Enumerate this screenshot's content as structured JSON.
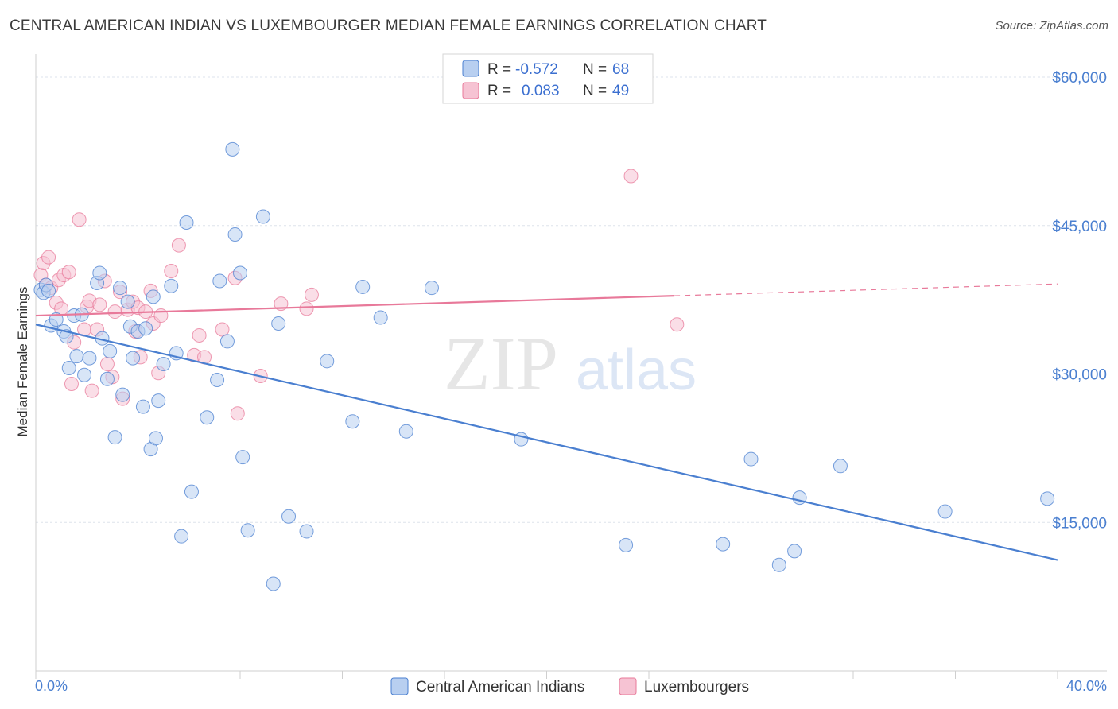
{
  "title": "CENTRAL AMERICAN INDIAN VS LUXEMBOURGER MEDIAN FEMALE EARNINGS CORRELATION CHART",
  "source": "Source: ZipAtlas.com",
  "watermark": {
    "zip": "ZIP",
    "atlas": "atlas"
  },
  "colors": {
    "blue": "#4a7fd0",
    "blue_fill": "#b8cff0",
    "pink": "#e8799a",
    "pink_fill": "#f6c3d3",
    "grid": "#dde3ec"
  },
  "chart_data": {
    "type": "scatter",
    "xlabel": "",
    "ylabel": "Median Female Earnings",
    "xlim": [
      0,
      40
    ],
    "ylim": [
      0,
      62000
    ],
    "x_tick_labels": {
      "left": "0.0%",
      "right": "40.0%"
    },
    "y_ticks": [
      15000,
      30000,
      45000,
      60000
    ],
    "y_tick_labels": [
      "$15,000",
      "$30,000",
      "$45,000",
      "$60,000"
    ],
    "legend": [
      {
        "r_label": "R =",
        "r_value": "-0.572",
        "n_label": "N =",
        "n_value": "68"
      },
      {
        "r_label": "R =",
        "r_value": "0.083",
        "n_label": "N =",
        "n_value": "49"
      }
    ],
    "series": [
      {
        "name": "Central American Indians",
        "color": "#4a7fd0",
        "trend": {
          "x0": 0,
          "y0": 35000,
          "x1": 40,
          "y1": 11200
        },
        "points": [
          [
            0.2,
            38500
          ],
          [
            0.3,
            38200
          ],
          [
            0.4,
            39000
          ],
          [
            0.5,
            38400
          ],
          [
            0.6,
            34900
          ],
          [
            0.8,
            35500
          ],
          [
            1.1,
            34300
          ],
          [
            1.2,
            33800
          ],
          [
            1.3,
            30600
          ],
          [
            1.5,
            35900
          ],
          [
            1.6,
            31800
          ],
          [
            1.8,
            36000
          ],
          [
            1.9,
            29900
          ],
          [
            2.1,
            31600
          ],
          [
            2.4,
            39200
          ],
          [
            2.5,
            40200
          ],
          [
            2.6,
            33600
          ],
          [
            2.8,
            29500
          ],
          [
            2.9,
            32300
          ],
          [
            3.1,
            23600
          ],
          [
            3.3,
            38700
          ],
          [
            3.4,
            27900
          ],
          [
            3.6,
            37300
          ],
          [
            3.7,
            34800
          ],
          [
            3.8,
            31600
          ],
          [
            4.0,
            34300
          ],
          [
            4.2,
            26700
          ],
          [
            4.3,
            34600
          ],
          [
            4.5,
            22400
          ],
          [
            4.6,
            37800
          ],
          [
            4.7,
            23500
          ],
          [
            4.8,
            27300
          ],
          [
            5.0,
            31000
          ],
          [
            5.3,
            38900
          ],
          [
            5.5,
            32100
          ],
          [
            5.7,
            13600
          ],
          [
            5.9,
            45300
          ],
          [
            6.1,
            18100
          ],
          [
            6.7,
            25600
          ],
          [
            7.1,
            29400
          ],
          [
            7.2,
            39400
          ],
          [
            7.5,
            33300
          ],
          [
            7.7,
            52700
          ],
          [
            7.8,
            44100
          ],
          [
            8.0,
            40200
          ],
          [
            8.1,
            21600
          ],
          [
            8.3,
            14200
          ],
          [
            8.9,
            45900
          ],
          [
            9.3,
            8800
          ],
          [
            9.5,
            35100
          ],
          [
            9.9,
            15600
          ],
          [
            10.6,
            14100
          ],
          [
            11.4,
            31300
          ],
          [
            12.4,
            25200
          ],
          [
            12.8,
            38800
          ],
          [
            13.5,
            35700
          ],
          [
            14.5,
            24200
          ],
          [
            15.5,
            38700
          ],
          [
            19.0,
            23400
          ],
          [
            23.1,
            12700
          ],
          [
            26.9,
            12800
          ],
          [
            28.0,
            21400
          ],
          [
            29.1,
            10700
          ],
          [
            29.7,
            12100
          ],
          [
            29.9,
            17500
          ],
          [
            31.5,
            20700
          ],
          [
            35.6,
            16100
          ],
          [
            39.6,
            17400
          ]
        ]
      },
      {
        "name": "Luxembourgers",
        "color": "#e8799a",
        "trend": {
          "x0": 0,
          "y0": 35900,
          "x1": 25,
          "y1": 37900,
          "dash_x1": 40,
          "dash_y1": 39100
        },
        "points": [
          [
            0.2,
            40000
          ],
          [
            0.3,
            41200
          ],
          [
            0.4,
            39000
          ],
          [
            0.5,
            41800
          ],
          [
            0.6,
            38700
          ],
          [
            0.8,
            37200
          ],
          [
            0.9,
            39500
          ],
          [
            1.0,
            36600
          ],
          [
            1.1,
            40000
          ],
          [
            1.3,
            40300
          ],
          [
            1.4,
            29000
          ],
          [
            1.5,
            33200
          ],
          [
            1.7,
            45600
          ],
          [
            1.9,
            34500
          ],
          [
            2.0,
            36800
          ],
          [
            2.1,
            37400
          ],
          [
            2.2,
            28300
          ],
          [
            2.4,
            34500
          ],
          [
            2.5,
            37000
          ],
          [
            2.7,
            39400
          ],
          [
            2.8,
            31000
          ],
          [
            3.0,
            29700
          ],
          [
            3.1,
            36300
          ],
          [
            3.3,
            38300
          ],
          [
            3.4,
            27500
          ],
          [
            3.6,
            36500
          ],
          [
            3.8,
            37300
          ],
          [
            3.9,
            34300
          ],
          [
            4.0,
            36700
          ],
          [
            4.1,
            31700
          ],
          [
            4.3,
            36300
          ],
          [
            4.5,
            38400
          ],
          [
            4.6,
            35100
          ],
          [
            4.8,
            30100
          ],
          [
            4.9,
            35900
          ],
          [
            5.3,
            40400
          ],
          [
            5.6,
            43000
          ],
          [
            6.2,
            31900
          ],
          [
            6.4,
            33900
          ],
          [
            6.6,
            31700
          ],
          [
            7.3,
            34500
          ],
          [
            7.8,
            39700
          ],
          [
            7.9,
            26000
          ],
          [
            8.8,
            29800
          ],
          [
            9.6,
            37100
          ],
          [
            10.6,
            36600
          ],
          [
            10.8,
            38000
          ],
          [
            23.3,
            50000
          ],
          [
            25.1,
            35000
          ]
        ]
      }
    ]
  }
}
